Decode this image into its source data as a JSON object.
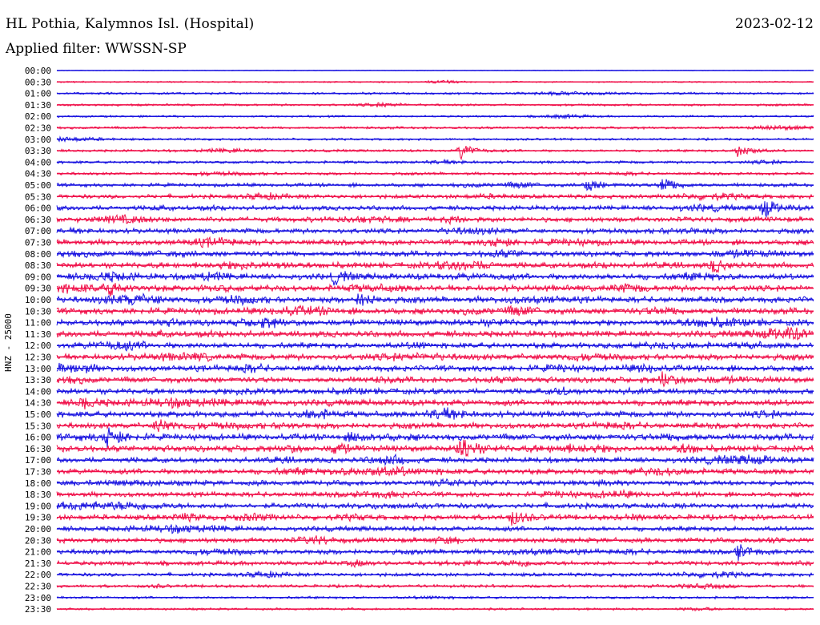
{
  "header": {
    "station": "HL Pothia, Kalymnos Isl. (Hospital)",
    "date": "2023-02-12",
    "filter": "Applied filter: WWSSN-SP"
  },
  "chart_data": {
    "type": "line",
    "title": "HL Pothia, Kalymnos Isl. (Hospital)",
    "ylabel": "HNZ - 25000",
    "colors": [
      "#1a14e0",
      "#f0104a"
    ],
    "rows": [
      "00:00",
      "00:30",
      "01:00",
      "01:30",
      "02:00",
      "02:30",
      "03:00",
      "03:30",
      "04:00",
      "04:30",
      "05:00",
      "05:30",
      "06:00",
      "06:30",
      "07:00",
      "07:30",
      "08:00",
      "08:30",
      "09:00",
      "09:30",
      "10:00",
      "10:30",
      "11:00",
      "11:30",
      "12:00",
      "12:30",
      "13:00",
      "13:30",
      "14:00",
      "14:30",
      "15:00",
      "15:30",
      "16:00",
      "16:30",
      "17:00",
      "17:30",
      "18:00",
      "18:30",
      "19:00",
      "19:30",
      "20:00",
      "20:30",
      "21:00",
      "21:30",
      "22:00",
      "22:30",
      "23:00",
      "23:30"
    ],
    "noise_level": [
      0.5,
      1.0,
      1.6,
      1.6,
      1.4,
      1.8,
      1.6,
      1.8,
      2.0,
      2.0,
      2.6,
      3.0,
      3.4,
      3.6,
      3.6,
      4.0,
      4.0,
      4.2,
      4.4,
      4.4,
      4.4,
      4.6,
      4.6,
      4.6,
      4.2,
      4.4,
      4.4,
      4.2,
      4.2,
      4.6,
      4.4,
      4.2,
      4.6,
      4.6,
      4.0,
      4.0,
      3.8,
      3.6,
      3.8,
      4.0,
      3.6,
      3.6,
      3.6,
      3.2,
      2.6,
      2.2,
      1.8,
      1.6
    ],
    "events": [
      {
        "row": "03:30",
        "minute": 16,
        "amp": 10
      },
      {
        "row": "03:30",
        "minute": 27,
        "amp": 9
      },
      {
        "row": "05:00",
        "minute": 24,
        "amp": 10
      },
      {
        "row": "05:00",
        "minute": 21,
        "amp": 8
      },
      {
        "row": "06:00",
        "minute": 28,
        "amp": 12
      },
      {
        "row": "08:30",
        "minute": 26,
        "amp": 8
      },
      {
        "row": "09:00",
        "minute": 11,
        "amp": 8
      },
      {
        "row": "09:30",
        "minute": 2,
        "amp": 9
      },
      {
        "row": "10:00",
        "minute": 12,
        "amp": 9
      },
      {
        "row": "13:30",
        "minute": 24,
        "amp": 9
      },
      {
        "row": "14:30",
        "minute": 31,
        "amp": 11
      },
      {
        "row": "14:30",
        "minute": 1,
        "amp": 7
      },
      {
        "row": "15:30",
        "minute": 4,
        "amp": 10
      },
      {
        "row": "16:00",
        "minute": 2,
        "amp": 13
      },
      {
        "row": "16:30",
        "minute": 16,
        "amp": 18
      },
      {
        "row": "16:30",
        "minute": 11,
        "amp": 7
      },
      {
        "row": "19:30",
        "minute": 18,
        "amp": 9
      },
      {
        "row": "20:30",
        "minute": 33,
        "amp": 11
      },
      {
        "row": "21:00",
        "minute": 27,
        "amp": 9
      }
    ]
  }
}
